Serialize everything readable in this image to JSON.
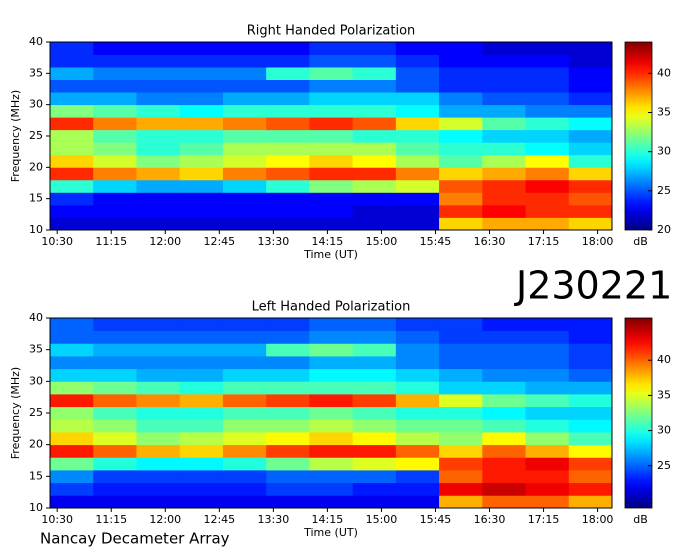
{
  "chart_data": [
    {
      "type": "heatmap",
      "title": "Right Handed Polarization",
      "xlabel": "Time (UT)",
      "ylabel": "Frequency (MHz)",
      "colormap": "jet",
      "colorbar_label": "dB",
      "xlim": [
        624,
        1092
      ],
      "ylim": [
        10,
        40
      ],
      "clim": [
        20,
        44
      ],
      "xticks": [
        {
          "value": 630,
          "label": "10:30"
        },
        {
          "value": 675,
          "label": "11:15"
        },
        {
          "value": 720,
          "label": "12:00"
        },
        {
          "value": 765,
          "label": "12:45"
        },
        {
          "value": 810,
          "label": "13:30"
        },
        {
          "value": 855,
          "label": "14:15"
        },
        {
          "value": 900,
          "label": "15:00"
        },
        {
          "value": 945,
          "label": "15:45"
        },
        {
          "value": 990,
          "label": "16:30"
        },
        {
          "value": 1035,
          "label": "17:15"
        },
        {
          "value": 1080,
          "label": "18:00"
        }
      ],
      "yticks": [
        10,
        15,
        20,
        25,
        30,
        35,
        40
      ],
      "cticks": [
        20,
        25,
        30,
        35,
        40
      ],
      "x": [
        642,
        678,
        714,
        750,
        786,
        822,
        858,
        894,
        930,
        966,
        1002,
        1038,
        1074
      ],
      "y": [
        11,
        13,
        15,
        17,
        19,
        21,
        23,
        25,
        27,
        29,
        31,
        33,
        35,
        37,
        39
      ],
      "z": [
        [
          22,
          22,
          22,
          22,
          22,
          22,
          22,
          22,
          22,
          36,
          37,
          37,
          36
        ],
        [
          23,
          23,
          23,
          23,
          23,
          23,
          23,
          22,
          22,
          40,
          41,
          40,
          40
        ],
        [
          24,
          23,
          23,
          23,
          23,
          23,
          23,
          23,
          23,
          38,
          40,
          40,
          39
        ],
        [
          30,
          28,
          27,
          27,
          28,
          30,
          32,
          33,
          34,
          39,
          40,
          41,
          40
        ],
        [
          40,
          38,
          37,
          36,
          38,
          39,
          40,
          40,
          38,
          36,
          37,
          38,
          36
        ],
        [
          36,
          34,
          32,
          33,
          34,
          35,
          36,
          35,
          33,
          31,
          33,
          35,
          30
        ],
        [
          33,
          32,
          30,
          31,
          33,
          33,
          33,
          33,
          31,
          30,
          30,
          29,
          28
        ],
        [
          33,
          31,
          30,
          30,
          31,
          31,
          31,
          30,
          30,
          29,
          28,
          28,
          27
        ],
        [
          40,
          38,
          37,
          37,
          38,
          39,
          40,
          39,
          36,
          34,
          31,
          30,
          29
        ],
        [
          32,
          31,
          30,
          29,
          30,
          30,
          30,
          30,
          29,
          27,
          27,
          26,
          26
        ],
        [
          27,
          27,
          26,
          26,
          27,
          27,
          28,
          28,
          28,
          26,
          25,
          25,
          24
        ],
        [
          25,
          25,
          25,
          25,
          25,
          25,
          26,
          26,
          25,
          24,
          24,
          24,
          23
        ],
        [
          27,
          26,
          26,
          26,
          26,
          30,
          31,
          30,
          25,
          24,
          24,
          24,
          23
        ],
        [
          24,
          24,
          24,
          24,
          24,
          24,
          25,
          25,
          24,
          23,
          23,
          23,
          22
        ],
        [
          24,
          23,
          23,
          23,
          23,
          23,
          24,
          24,
          23,
          23,
          22,
          22,
          22
        ]
      ]
    },
    {
      "type": "heatmap",
      "title": "Left Handed Polarization",
      "xlabel": "Time (UT)",
      "ylabel": "Frequency (MHz)",
      "colormap": "jet",
      "colorbar_label": "dB",
      "xlim": [
        624,
        1092
      ],
      "ylim": [
        10,
        40
      ],
      "clim": [
        19,
        46
      ],
      "xticks": [
        {
          "value": 630,
          "label": "10:30"
        },
        {
          "value": 675,
          "label": "11:15"
        },
        {
          "value": 720,
          "label": "12:00"
        },
        {
          "value": 765,
          "label": "12:45"
        },
        {
          "value": 810,
          "label": "13:30"
        },
        {
          "value": 855,
          "label": "14:15"
        },
        {
          "value": 900,
          "label": "15:00"
        },
        {
          "value": 945,
          "label": "15:45"
        },
        {
          "value": 990,
          "label": "16:30"
        },
        {
          "value": 1035,
          "label": "17:15"
        },
        {
          "value": 1080,
          "label": "18:00"
        }
      ],
      "yticks": [
        10,
        15,
        20,
        25,
        30,
        35,
        40
      ],
      "cticks": [
        25,
        30,
        35,
        40
      ],
      "x": [
        642,
        678,
        714,
        750,
        786,
        822,
        858,
        894,
        930,
        966,
        1002,
        1038,
        1074
      ],
      "y": [
        11,
        13,
        15,
        17,
        19,
        21,
        23,
        25,
        27,
        29,
        31,
        33,
        35,
        37,
        39
      ],
      "z": [
        [
          22,
          22,
          22,
          22,
          22,
          22,
          22,
          22,
          22,
          38,
          40,
          40,
          38
        ],
        [
          24,
          23,
          23,
          23,
          23,
          24,
          24,
          23,
          23,
          43,
          44,
          43,
          42
        ],
        [
          26,
          24,
          24,
          24,
          24,
          25,
          25,
          25,
          24,
          40,
          42,
          42,
          40
        ],
        [
          32,
          30,
          29,
          29,
          30,
          32,
          34,
          35,
          36,
          41,
          42,
          43,
          41
        ],
        [
          42,
          40,
          38,
          37,
          39,
          41,
          42,
          42,
          40,
          37,
          40,
          38,
          36
        ],
        [
          37,
          35,
          33,
          34,
          35,
          36,
          37,
          36,
          34,
          33,
          36,
          33,
          31
        ],
        [
          34,
          33,
          31,
          31,
          33,
          33,
          34,
          33,
          32,
          32,
          31,
          30,
          29
        ],
        [
          33,
          31,
          30,
          30,
          31,
          31,
          32,
          31,
          30,
          30,
          29,
          28,
          28
        ],
        [
          42,
          40,
          39,
          38,
          40,
          41,
          42,
          41,
          38,
          35,
          32,
          31,
          30
        ],
        [
          33,
          32,
          31,
          30,
          31,
          31,
          31,
          31,
          30,
          28,
          28,
          27,
          27
        ],
        [
          28,
          28,
          27,
          27,
          28,
          28,
          29,
          29,
          28,
          27,
          26,
          26,
          25
        ],
        [
          26,
          26,
          26,
          26,
          26,
          26,
          27,
          27,
          26,
          25,
          25,
          25,
          24
        ],
        [
          28,
          27,
          27,
          27,
          27,
          31,
          32,
          31,
          26,
          25,
          25,
          25,
          24
        ],
        [
          25,
          25,
          25,
          25,
          25,
          25,
          26,
          26,
          25,
          24,
          24,
          24,
          23
        ],
        [
          25,
          24,
          24,
          24,
          24,
          24,
          25,
          25,
          24,
          24,
          23,
          23,
          23
        ]
      ]
    }
  ],
  "labels": {
    "event": "J230221",
    "credit": "Nancay Decameter Array"
  }
}
